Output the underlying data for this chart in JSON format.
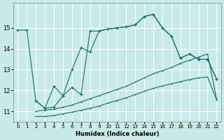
{
  "xlabel": "Humidex (Indice chaleur)",
  "bg_color": "#c8eae8",
  "line_color": "#1a6b6b",
  "grid_color": "#ffffff",
  "xlim": [
    -0.5,
    22.5
  ],
  "ylim": [
    10.5,
    16.2
  ],
  "yticks": [
    11,
    12,
    13,
    14,
    15
  ],
  "xticks": [
    0,
    1,
    2,
    3,
    4,
    5,
    6,
    7,
    8,
    9,
    10,
    11,
    12,
    13,
    14,
    15,
    16,
    17,
    18,
    19,
    20,
    21,
    22
  ],
  "line1_x": [
    0,
    1,
    2,
    3,
    4,
    5,
    6,
    7,
    8,
    9,
    10,
    11,
    12,
    13,
    14,
    15,
    16,
    17,
    18,
    19,
    20,
    21,
    22
  ],
  "line1_y": [
    14.9,
    14.9,
    11.5,
    11.15,
    11.2,
    11.75,
    12.15,
    11.8,
    14.85,
    14.85,
    14.95,
    15.0,
    15.05,
    15.15,
    15.55,
    15.65,
    15.0,
    14.6,
    13.55,
    13.75,
    13.5,
    13.5,
    12.55
  ],
  "line2_x": [
    2,
    3,
    4,
    5,
    6,
    7,
    8,
    9,
    10,
    11,
    12,
    13,
    14,
    15,
    16,
    17,
    18,
    19,
    20,
    21,
    22
  ],
  "line2_y": [
    11.5,
    11.15,
    12.2,
    11.75,
    13.0,
    14.05,
    13.85,
    14.85,
    14.95,
    15.0,
    15.05,
    15.15,
    15.55,
    15.65,
    15.0,
    14.6,
    13.55,
    13.75,
    13.5,
    13.5,
    12.55
  ],
  "line3_x": [
    2,
    3,
    4,
    5,
    6,
    7,
    8,
    9,
    10,
    11,
    12,
    13,
    14,
    15,
    16,
    17,
    18,
    19,
    20,
    21,
    22
  ],
  "line3_y": [
    11.0,
    11.05,
    11.1,
    11.2,
    11.3,
    11.45,
    11.6,
    11.75,
    11.9,
    12.05,
    12.2,
    12.4,
    12.6,
    12.8,
    12.95,
    13.1,
    13.3,
    13.45,
    13.6,
    13.75,
    11.6
  ],
  "line4_x": [
    2,
    3,
    4,
    5,
    6,
    7,
    8,
    9,
    10,
    11,
    12,
    13,
    14,
    15,
    16,
    17,
    18,
    19,
    20,
    21,
    22
  ],
  "line4_y": [
    10.75,
    10.75,
    10.8,
    10.88,
    10.96,
    11.05,
    11.15,
    11.25,
    11.4,
    11.52,
    11.65,
    11.8,
    11.96,
    12.1,
    12.22,
    12.32,
    12.42,
    12.52,
    12.6,
    12.65,
    11.55
  ]
}
